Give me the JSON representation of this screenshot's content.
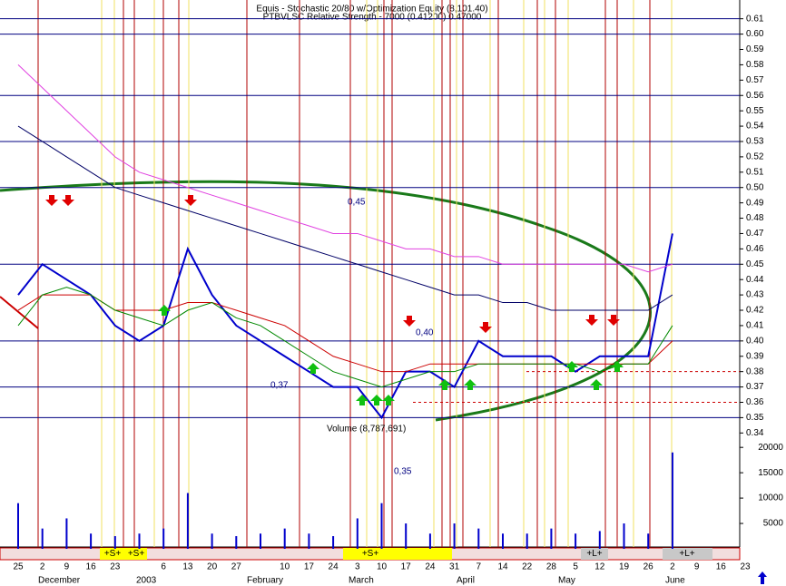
{
  "chart_data": {
    "type": "line",
    "headers": [
      "Equis - Stochastic 20/80 w/Optimization Equity (8,101.40)",
      "PTBVLSC Relative Strength - 7000 (0.41200) 0.47000"
    ],
    "categories": [
      "25",
      "2",
      "9",
      "16",
      "23",
      null,
      "6",
      "13",
      "20",
      "27",
      null,
      "10",
      "17",
      "24",
      "3",
      "10",
      "17",
      "24",
      "31",
      "7",
      "14",
      "22",
      "28",
      "5",
      "12",
      "19",
      "26",
      "2",
      "9",
      "16",
      "23"
    ],
    "months": [
      "December",
      "2003",
      "February",
      "March",
      "April",
      "May",
      "June"
    ],
    "series": [
      {
        "color": "#0000cc",
        "values": [
          0.43,
          0.45,
          0.44,
          0.43,
          0.41,
          0.4,
          0.41,
          0.46,
          0.43,
          0.41,
          0.4,
          0.39,
          0.38,
          0.37,
          0.37,
          0.35,
          0.38,
          0.38,
          0.37,
          0.4,
          0.39,
          0.39,
          0.39,
          0.38,
          0.39,
          0.39,
          0.39,
          0.47,
          null,
          null,
          null
        ]
      },
      {
        "color": "#e040e0",
        "values": [
          0.58,
          0.565,
          0.55,
          0.535,
          0.52,
          0.51,
          0.505,
          0.5,
          0.495,
          0.49,
          0.485,
          0.48,
          0.475,
          0.47,
          0.47,
          0.465,
          0.46,
          0.46,
          0.455,
          0.455,
          0.45,
          0.45,
          0.45,
          0.45,
          0.45,
          0.45,
          0.445,
          0.45,
          null,
          null,
          null
        ]
      },
      {
        "color": "#000066",
        "values": [
          0.54,
          0.53,
          0.52,
          0.51,
          0.5,
          0.495,
          0.49,
          0.485,
          0.48,
          0.475,
          0.47,
          0.465,
          0.46,
          0.455,
          0.45,
          0.445,
          0.44,
          0.435,
          0.43,
          0.43,
          0.425,
          0.425,
          0.42,
          0.42,
          0.42,
          0.42,
          0.42,
          0.43,
          null,
          null,
          null
        ]
      },
      {
        "color": "#cc0000",
        "values": [
          0.42,
          0.43,
          0.43,
          0.43,
          0.42,
          0.42,
          0.42,
          0.425,
          0.425,
          0.42,
          0.415,
          0.41,
          0.4,
          0.39,
          0.385,
          0.38,
          0.38,
          0.385,
          0.385,
          0.385,
          0.385,
          0.385,
          0.385,
          0.385,
          0.385,
          0.385,
          0.385,
          0.4,
          null,
          null,
          null
        ]
      },
      {
        "color": "#008800",
        "values": [
          0.41,
          0.43,
          0.435,
          0.43,
          0.42,
          0.415,
          0.41,
          0.42,
          0.425,
          0.415,
          0.41,
          0.4,
          0.39,
          0.38,
          0.375,
          0.37,
          0.375,
          0.38,
          0.38,
          0.385,
          0.385,
          0.385,
          0.385,
          0.385,
          0.38,
          0.385,
          0.385,
          0.41,
          null,
          null,
          null
        ]
      }
    ],
    "volume": {
      "color": "#0000cc",
      "values": [
        9000,
        4000,
        6000,
        3000,
        2500,
        3000,
        4000,
        11000,
        3000,
        2500,
        3000,
        4000,
        3000,
        2500,
        6000,
        9000,
        5000,
        3000,
        5000,
        4000,
        3000,
        3000,
        4000,
        3000,
        3500,
        5000,
        3000,
        19000,
        null,
        null,
        null
      ],
      "ylim": [
        0,
        22000
      ],
      "yticks": [
        5000,
        10000,
        15000,
        20000
      ]
    },
    "ylim": [
      0.3325,
      0.6175
    ],
    "yticks": [
      0.34,
      0.35,
      0.36,
      0.37,
      0.38,
      0.39,
      {
        "value": 0.4,
        "label": "0.40"
      },
      0.41,
      0.42,
      0.43,
      0.44,
      0.45,
      0.46,
      0.47,
      0.48,
      0.49,
      {
        "value": 0.5,
        "label": "0.50"
      },
      0.51,
      0.52,
      0.53,
      0.54,
      0.55,
      0.56,
      0.57,
      0.58,
      0.59,
      {
        "value": 0.6,
        "label": "0.60"
      },
      0.61
    ],
    "annotations": [
      "0,45",
      "0,40",
      "0,37",
      "0,35",
      "Volume (8,787,691)"
    ],
    "status_labels": [
      "+S+",
      "+S+",
      "+S+",
      "+L+",
      "+L+"
    ]
  }
}
